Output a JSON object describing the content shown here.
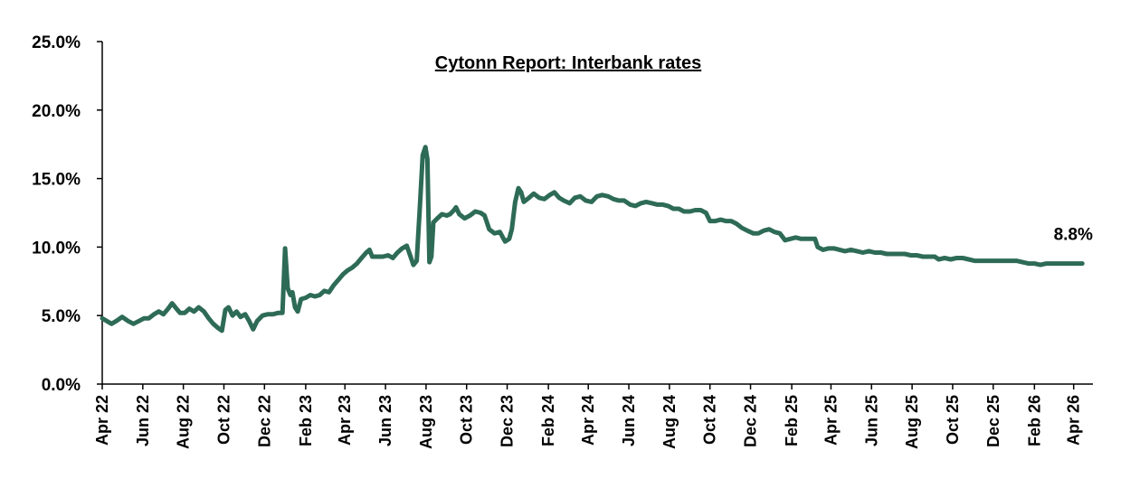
{
  "chart_data": {
    "type": "line",
    "title": "Cytonn Report: Interbank rates",
    "xlabel": "",
    "ylabel": "",
    "ylim": [
      0,
      25
    ],
    "y_ticks": [
      "0.0%",
      "5.0%",
      "10.0%",
      "15.0%",
      "20.0%",
      "25.0%"
    ],
    "y_tick_values": [
      0,
      5,
      10,
      15,
      20,
      25
    ],
    "x_range": [
      "2022-04-01",
      "2026-04-30"
    ],
    "x_ticks": [
      "Apr 22",
      "Jun 22",
      "Aug 22",
      "Oct 22",
      "Dec 22",
      "Feb 23",
      "Apr 23",
      "Jun 23",
      "Aug 23",
      "Oct 23",
      "Dec 23",
      "Feb 24",
      "Apr 24",
      "Jun 24",
      "Aug 24",
      "Oct 24",
      "Dec 24",
      "Feb 25",
      "Apr 25",
      "Jun 25",
      "Aug 25",
      "Oct 25",
      "Dec 25",
      "Feb 26",
      "Apr 26"
    ],
    "x_tick_dates": [
      "2022-04-01",
      "2022-06-01",
      "2022-08-01",
      "2022-10-01",
      "2022-12-01",
      "2023-02-01",
      "2023-04-01",
      "2023-06-01",
      "2023-08-01",
      "2023-10-01",
      "2023-12-01",
      "2024-02-01",
      "2024-04-01",
      "2024-06-01",
      "2024-08-01",
      "2024-10-01",
      "2024-12-01",
      "2025-02-01",
      "2025-04-01",
      "2025-06-01",
      "2025-08-01",
      "2025-10-01",
      "2025-12-01",
      "2026-02-01",
      "2026-04-01"
    ],
    "grid": false,
    "line_color": "#2e6b56",
    "end_label": "8.8%",
    "series": [
      {
        "points": [
          [
            "2022-04-01",
            4.8
          ],
          [
            "2022-04-08",
            4.6
          ],
          [
            "2022-04-15",
            4.4
          ],
          [
            "2022-04-22",
            4.6
          ],
          [
            "2022-05-01",
            4.9
          ],
          [
            "2022-05-10",
            4.6
          ],
          [
            "2022-05-18",
            4.4
          ],
          [
            "2022-05-26",
            4.6
          ],
          [
            "2022-06-03",
            4.8
          ],
          [
            "2022-06-10",
            4.8
          ],
          [
            "2022-06-18",
            5.1
          ],
          [
            "2022-06-25",
            5.3
          ],
          [
            "2022-07-02",
            5.1
          ],
          [
            "2022-07-09",
            5.5
          ],
          [
            "2022-07-15",
            5.9
          ],
          [
            "2022-07-20",
            5.6
          ],
          [
            "2022-07-27",
            5.2
          ],
          [
            "2022-08-03",
            5.2
          ],
          [
            "2022-08-10",
            5.5
          ],
          [
            "2022-08-17",
            5.3
          ],
          [
            "2022-08-24",
            5.6
          ],
          [
            "2022-09-01",
            5.3
          ],
          [
            "2022-09-08",
            4.8
          ],
          [
            "2022-09-15",
            4.4
          ],
          [
            "2022-09-22",
            4.1
          ],
          [
            "2022-09-28",
            3.9
          ],
          [
            "2022-10-03",
            5.4
          ],
          [
            "2022-10-08",
            5.6
          ],
          [
            "2022-10-14",
            5.0
          ],
          [
            "2022-10-20",
            5.3
          ],
          [
            "2022-10-26",
            4.9
          ],
          [
            "2022-11-02",
            5.1
          ],
          [
            "2022-11-08",
            4.6
          ],
          [
            "2022-11-14",
            4.0
          ],
          [
            "2022-11-20",
            4.6
          ],
          [
            "2022-11-28",
            5.0
          ],
          [
            "2022-12-06",
            5.1
          ],
          [
            "2022-12-14",
            5.1
          ],
          [
            "2022-12-22",
            5.2
          ],
          [
            "2022-12-28",
            5.2
          ],
          [
            "2023-01-01",
            9.9
          ],
          [
            "2023-01-05",
            7.0
          ],
          [
            "2023-01-09",
            6.5
          ],
          [
            "2023-01-12",
            6.7
          ],
          [
            "2023-01-16",
            5.6
          ],
          [
            "2023-01-20",
            5.3
          ],
          [
            "2023-01-25",
            6.2
          ],
          [
            "2023-02-01",
            6.3
          ],
          [
            "2023-02-08",
            6.5
          ],
          [
            "2023-02-15",
            6.4
          ],
          [
            "2023-02-22",
            6.5
          ],
          [
            "2023-03-01",
            6.8
          ],
          [
            "2023-03-08",
            6.7
          ],
          [
            "2023-03-15",
            7.2
          ],
          [
            "2023-03-22",
            7.6
          ],
          [
            "2023-03-29",
            8.0
          ],
          [
            "2023-04-05",
            8.3
          ],
          [
            "2023-04-12",
            8.5
          ],
          [
            "2023-04-19",
            8.8
          ],
          [
            "2023-04-26",
            9.2
          ],
          [
            "2023-05-03",
            9.6
          ],
          [
            "2023-05-08",
            9.8
          ],
          [
            "2023-05-12",
            9.3
          ],
          [
            "2023-05-20",
            9.3
          ],
          [
            "2023-05-28",
            9.3
          ],
          [
            "2023-06-05",
            9.4
          ],
          [
            "2023-06-12",
            9.2
          ],
          [
            "2023-06-19",
            9.6
          ],
          [
            "2023-06-26",
            9.9
          ],
          [
            "2023-07-03",
            10.1
          ],
          [
            "2023-07-08",
            9.4
          ],
          [
            "2023-07-13",
            8.7
          ],
          [
            "2023-07-18",
            9.0
          ],
          [
            "2023-07-23",
            13.2
          ],
          [
            "2023-07-27",
            16.7
          ],
          [
            "2023-07-31",
            17.3
          ],
          [
            "2023-08-03",
            16.4
          ],
          [
            "2023-08-06",
            8.9
          ],
          [
            "2023-08-09",
            9.3
          ],
          [
            "2023-08-12",
            11.8
          ],
          [
            "2023-08-18",
            12.1
          ],
          [
            "2023-08-25",
            12.4
          ],
          [
            "2023-09-01",
            12.3
          ],
          [
            "2023-09-06",
            12.4
          ],
          [
            "2023-09-12",
            12.7
          ],
          [
            "2023-09-15",
            12.9
          ],
          [
            "2023-09-20",
            12.4
          ],
          [
            "2023-09-28",
            12.1
          ],
          [
            "2023-10-06",
            12.3
          ],
          [
            "2023-10-14",
            12.6
          ],
          [
            "2023-10-22",
            12.5
          ],
          [
            "2023-10-28",
            12.3
          ],
          [
            "2023-11-04",
            11.3
          ],
          [
            "2023-11-12",
            11.0
          ],
          [
            "2023-11-20",
            11.1
          ],
          [
            "2023-11-28",
            10.4
          ],
          [
            "2023-12-04",
            10.6
          ],
          [
            "2023-12-08",
            11.3
          ],
          [
            "2023-12-13",
            13.3
          ],
          [
            "2023-12-18",
            14.3
          ],
          [
            "2023-12-22",
            14.0
          ],
          [
            "2023-12-26",
            13.3
          ],
          [
            "2024-01-03",
            13.6
          ],
          [
            "2024-01-10",
            13.9
          ],
          [
            "2024-01-18",
            13.6
          ],
          [
            "2024-01-26",
            13.5
          ],
          [
            "2024-02-03",
            13.8
          ],
          [
            "2024-02-10",
            14.0
          ],
          [
            "2024-02-17",
            13.6
          ],
          [
            "2024-02-24",
            13.4
          ],
          [
            "2024-03-04",
            13.2
          ],
          [
            "2024-03-12",
            13.6
          ],
          [
            "2024-03-20",
            13.7
          ],
          [
            "2024-03-28",
            13.4
          ],
          [
            "2024-04-06",
            13.3
          ],
          [
            "2024-04-14",
            13.7
          ],
          [
            "2024-04-22",
            13.8
          ],
          [
            "2024-05-01",
            13.7
          ],
          [
            "2024-05-09",
            13.5
          ],
          [
            "2024-05-17",
            13.4
          ],
          [
            "2024-05-25",
            13.4
          ],
          [
            "2024-06-03",
            13.1
          ],
          [
            "2024-06-11",
            13.0
          ],
          [
            "2024-06-19",
            13.2
          ],
          [
            "2024-06-27",
            13.3
          ],
          [
            "2024-07-06",
            13.2
          ],
          [
            "2024-07-14",
            13.1
          ],
          [
            "2024-07-22",
            13.1
          ],
          [
            "2024-07-30",
            13.0
          ],
          [
            "2024-08-07",
            12.8
          ],
          [
            "2024-08-15",
            12.8
          ],
          [
            "2024-08-23",
            12.6
          ],
          [
            "2024-09-01",
            12.6
          ],
          [
            "2024-09-09",
            12.7
          ],
          [
            "2024-09-17",
            12.7
          ],
          [
            "2024-09-25",
            12.5
          ],
          [
            "2024-10-01",
            11.9
          ],
          [
            "2024-10-09",
            11.9
          ],
          [
            "2024-10-17",
            12.0
          ],
          [
            "2024-10-25",
            11.9
          ],
          [
            "2024-11-02",
            11.9
          ],
          [
            "2024-11-10",
            11.7
          ],
          [
            "2024-11-18",
            11.4
          ],
          [
            "2024-11-26",
            11.2
          ],
          [
            "2024-12-05",
            11.0
          ],
          [
            "2024-12-13",
            11.0
          ],
          [
            "2024-12-21",
            11.2
          ],
          [
            "2024-12-29",
            11.3
          ],
          [
            "2025-01-06",
            11.1
          ],
          [
            "2025-01-14",
            11.0
          ],
          [
            "2025-01-22",
            10.5
          ],
          [
            "2025-01-30",
            10.6
          ],
          [
            "2025-02-07",
            10.7
          ],
          [
            "2025-02-15",
            10.6
          ],
          [
            "2025-02-23",
            10.6
          ],
          [
            "2025-03-03",
            10.6
          ],
          [
            "2025-03-08",
            10.6
          ],
          [
            "2025-03-12",
            10.0
          ],
          [
            "2025-03-20",
            9.8
          ],
          [
            "2025-03-28",
            9.9
          ],
          [
            "2025-04-06",
            9.9
          ],
          [
            "2025-04-14",
            9.8
          ],
          [
            "2025-04-22",
            9.7
          ],
          [
            "2025-05-01",
            9.8
          ],
          [
            "2025-05-10",
            9.7
          ],
          [
            "2025-05-19",
            9.6
          ],
          [
            "2025-05-28",
            9.7
          ],
          [
            "2025-06-06",
            9.6
          ],
          [
            "2025-06-15",
            9.6
          ],
          [
            "2025-06-24",
            9.5
          ],
          [
            "2025-07-03",
            9.5
          ],
          [
            "2025-07-12",
            9.5
          ],
          [
            "2025-07-21",
            9.5
          ],
          [
            "2025-07-30",
            9.4
          ],
          [
            "2025-08-08",
            9.4
          ],
          [
            "2025-08-17",
            9.3
          ],
          [
            "2025-08-26",
            9.3
          ],
          [
            "2025-09-04",
            9.3
          ],
          [
            "2025-09-10",
            9.1
          ],
          [
            "2025-09-19",
            9.2
          ],
          [
            "2025-09-28",
            9.1
          ],
          [
            "2025-10-07",
            9.2
          ],
          [
            "2025-10-16",
            9.2
          ],
          [
            "2025-10-25",
            9.1
          ],
          [
            "2025-11-03",
            9.0
          ],
          [
            "2025-11-12",
            9.0
          ],
          [
            "2025-11-21",
            9.0
          ],
          [
            "2025-11-30",
            9.0
          ],
          [
            "2025-12-09",
            9.0
          ],
          [
            "2025-12-18",
            9.0
          ],
          [
            "2025-12-27",
            9.0
          ],
          [
            "2026-01-05",
            9.0
          ],
          [
            "2026-01-14",
            8.9
          ],
          [
            "2026-01-23",
            8.8
          ],
          [
            "2026-02-01",
            8.8
          ],
          [
            "2026-02-10",
            8.7
          ],
          [
            "2026-02-19",
            8.8
          ],
          [
            "2026-02-28",
            8.8
          ],
          [
            "2026-03-09",
            8.8
          ],
          [
            "2026-03-18",
            8.8
          ],
          [
            "2026-03-27",
            8.8
          ],
          [
            "2026-04-05",
            8.8
          ],
          [
            "2026-04-14",
            8.8
          ]
        ]
      }
    ]
  }
}
